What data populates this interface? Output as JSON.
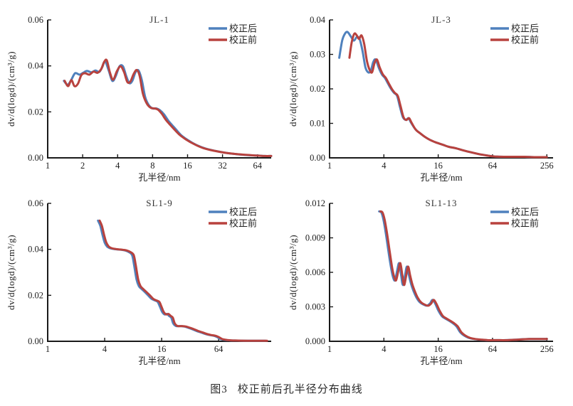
{
  "figure_caption": {
    "label": "图3",
    "text": "校正前后孔半径分布曲线"
  },
  "colors": {
    "after": "#4f81bd",
    "before": "#b8423e",
    "axis": "#1a1a1a",
    "text": "#1c1c1c"
  },
  "legend_labels": {
    "after": "校正后",
    "before": "校正前"
  },
  "chart_data": [
    {
      "type": "line",
      "title": "JL-1",
      "xlabel": "孔半径/nm",
      "ylabel": "dv/d(logd)/(cm³/g)",
      "xscale": "log",
      "xlim": [
        1,
        84
      ],
      "ylim": [
        0,
        0.06
      ],
      "xticks": [
        1,
        2,
        4,
        8,
        16,
        32,
        64
      ],
      "xtick_labels": [
        "1",
        "2",
        "4",
        "8",
        "16",
        "32",
        "64"
      ],
      "yticks": [
        0,
        0.02,
        0.04,
        0.06
      ],
      "ytick_labels": [
        "0.00",
        "0.02",
        "0.04",
        "0.06"
      ],
      "legend_position": "top-right",
      "grid": false,
      "series": [
        {
          "name": "校正后",
          "color_key": "after",
          "x": [
            1.38,
            1.48,
            1.58,
            1.72,
            1.88,
            2.02,
            2.18,
            2.38,
            2.58,
            2.78,
            2.95,
            3.12,
            3.35,
            3.6,
            3.85,
            4.15,
            4.45,
            4.75,
            5.05,
            5.35,
            5.7,
            6.05,
            6.45,
            6.9,
            7.4,
            8.0,
            8.6,
            9.2,
            10,
            11,
            12.5,
            14,
            16,
            19,
            23,
            28,
            34,
            42,
            52,
            64,
            74,
            84
          ],
          "y": [
            0.0335,
            0.0318,
            0.0335,
            0.0368,
            0.0362,
            0.037,
            0.0378,
            0.0372,
            0.038,
            0.0374,
            0.0395,
            0.042,
            0.038,
            0.0335,
            0.0355,
            0.0398,
            0.0398,
            0.0355,
            0.0325,
            0.0335,
            0.0372,
            0.038,
            0.034,
            0.0265,
            0.023,
            0.0215,
            0.0215,
            0.0208,
            0.019,
            0.016,
            0.0128,
            0.01,
            0.0078,
            0.0056,
            0.004,
            0.003,
            0.0022,
            0.0016,
            0.0012,
            0.001,
            0.0008,
            0.0008
          ]
        },
        {
          "name": "校正前",
          "color_key": "before",
          "x": [
            1.4,
            1.5,
            1.6,
            1.7,
            1.82,
            1.95,
            2.1,
            2.28,
            2.48,
            2.68,
            2.88,
            3.05,
            3.22,
            3.42,
            3.65,
            3.95,
            4.25,
            4.55,
            4.85,
            5.15,
            5.5,
            5.85,
            6.2,
            6.6,
            7.1,
            7.7,
            8.3,
            8.9,
            9.6,
            10.5,
            12,
            13.5,
            15.5,
            18.5,
            22,
            27,
            33,
            41,
            51,
            63,
            74,
            84
          ],
          "y": [
            0.0335,
            0.0312,
            0.0338,
            0.0312,
            0.0322,
            0.036,
            0.0368,
            0.0362,
            0.0375,
            0.037,
            0.0385,
            0.0415,
            0.0425,
            0.0375,
            0.034,
            0.0378,
            0.0398,
            0.0372,
            0.033,
            0.0332,
            0.0365,
            0.0382,
            0.0355,
            0.028,
            0.0238,
            0.0218,
            0.0215,
            0.021,
            0.0192,
            0.0163,
            0.013,
            0.0103,
            0.008,
            0.0058,
            0.0042,
            0.0031,
            0.0023,
            0.0017,
            0.0013,
            0.001,
            0.0008,
            0.0008
          ]
        }
      ]
    },
    {
      "type": "line",
      "title": "JL-3",
      "xlabel": "孔半径/nm",
      "ylabel": "dv/d(logd)/(cm³/g)",
      "xscale": "log",
      "xlim": [
        1,
        300
      ],
      "ylim": [
        0,
        0.04
      ],
      "xticks": [
        1,
        4,
        16,
        64,
        256
      ],
      "xtick_labels": [
        "1",
        "4",
        "16",
        "64",
        "256"
      ],
      "yticks": [
        0,
        0.01,
        0.02,
        0.03,
        0.04
      ],
      "ytick_labels": [
        "0.00",
        "0.01",
        "0.02",
        "0.03",
        "0.04"
      ],
      "legend_position": "top-right",
      "grid": false,
      "series": [
        {
          "name": "校正后",
          "color_key": "after",
          "x": [
            1.28,
            1.38,
            1.48,
            1.58,
            1.72,
            1.86,
            2.0,
            2.15,
            2.32,
            2.5,
            2.68,
            2.86,
            3.05,
            3.25,
            3.5,
            3.8,
            4.1,
            4.45,
            4.8,
            5.2,
            5.6,
            6.0,
            6.5,
            7.0,
            7.5,
            8.0,
            9.0,
            10,
            11.5,
            13,
            15,
            18,
            21,
            25,
            30,
            37,
            45,
            55,
            68,
            85,
            110,
            145,
            190,
            256
          ],
          "y": [
            0.029,
            0.034,
            0.036,
            0.0365,
            0.0352,
            0.034,
            0.035,
            0.0345,
            0.031,
            0.0262,
            0.0248,
            0.0252,
            0.0278,
            0.0285,
            0.0262,
            0.0242,
            0.0232,
            0.0215,
            0.02,
            0.0188,
            0.018,
            0.015,
            0.0118,
            0.011,
            0.0115,
            0.0102,
            0.0082,
            0.0072,
            0.006,
            0.0052,
            0.0045,
            0.0038,
            0.0032,
            0.0028,
            0.0022,
            0.0016,
            0.0011,
            0.0007,
            0.0004,
            0.0003,
            0.0003,
            0.0003,
            0.0002,
            0.0002
          ]
        },
        {
          "name": "校正前",
          "color_key": "before",
          "x": [
            1.66,
            1.76,
            1.88,
            2.0,
            2.12,
            2.26,
            2.42,
            2.6,
            2.78,
            2.96,
            3.15,
            3.35,
            3.6,
            3.9,
            4.2,
            4.55,
            4.9,
            5.3,
            5.7,
            6.1,
            6.6,
            7.1,
            7.6,
            8.1,
            9.0,
            10,
            11.5,
            13,
            15,
            18,
            21,
            25,
            30,
            37,
            45,
            55,
            68,
            85,
            110,
            145,
            190,
            256
          ],
          "y": [
            0.029,
            0.0335,
            0.036,
            0.0355,
            0.0345,
            0.0355,
            0.033,
            0.028,
            0.0255,
            0.0248,
            0.0275,
            0.0285,
            0.0262,
            0.0242,
            0.0232,
            0.0215,
            0.02,
            0.0188,
            0.018,
            0.0152,
            0.0118,
            0.011,
            0.0115,
            0.0102,
            0.0082,
            0.0072,
            0.006,
            0.0052,
            0.0045,
            0.0038,
            0.0032,
            0.0028,
            0.0022,
            0.0016,
            0.0011,
            0.0007,
            0.0004,
            0.0003,
            0.0003,
            0.0003,
            0.0002,
            0.0002
          ]
        }
      ]
    },
    {
      "type": "line",
      "title": "SL1-9",
      "xlabel": "孔半径/nm",
      "ylabel": "dv/d(logd)/(cm³/g)",
      "xscale": "log",
      "xlim": [
        1,
        230
      ],
      "ylim": [
        0,
        0.06
      ],
      "xticks": [
        1,
        4,
        16,
        64
      ],
      "xtick_labels": [
        "1",
        "4",
        "16",
        "64"
      ],
      "yticks": [
        0,
        0.02,
        0.04,
        0.06
      ],
      "ytick_labels": [
        "0.00",
        "0.02",
        "0.04",
        "0.06"
      ],
      "legend_position": "top-right",
      "grid": false,
      "series": [
        {
          "name": "校正后",
          "color_key": "after",
          "x": [
            3.4,
            3.6,
            3.8,
            4.0,
            4.25,
            4.55,
            4.9,
            5.4,
            6.0,
            6.6,
            7.2,
            7.8,
            8.2,
            8.7,
            9.2,
            9.8,
            10.6,
            11.5,
            12.5,
            13.5,
            14.5,
            15.3,
            16.2,
            17.2,
            18.2,
            19.2,
            20.2,
            21.2,
            22.5,
            24,
            26,
            28,
            31,
            34,
            38,
            42,
            47,
            52,
            57,
            62,
            67,
            75,
            85,
            100,
            125,
            160,
            200
          ],
          "y": [
            0.0525,
            0.0502,
            0.0462,
            0.043,
            0.0412,
            0.0405,
            0.0402,
            0.04,
            0.0398,
            0.0395,
            0.0388,
            0.0375,
            0.033,
            0.0268,
            0.024,
            0.0228,
            0.0215,
            0.02,
            0.0185,
            0.0178,
            0.0172,
            0.0152,
            0.0128,
            0.0117,
            0.0119,
            0.011,
            0.0103,
            0.0078,
            0.0067,
            0.0066,
            0.0066,
            0.0064,
            0.0058,
            0.0052,
            0.0044,
            0.0038,
            0.0031,
            0.0027,
            0.0024,
            0.0018,
            0.001,
            0.0006,
            0.0004,
            0.0003,
            0.0002,
            0.0002,
            0.0002
          ]
        },
        {
          "name": "校正前",
          "color_key": "before",
          "x": [
            3.54,
            3.74,
            3.95,
            4.16,
            4.42,
            4.73,
            5.1,
            5.62,
            6.24,
            6.86,
            7.49,
            8.11,
            8.53,
            9.05,
            9.57,
            10.2,
            11.0,
            12.0,
            13.0,
            14.0,
            15.1,
            15.9,
            16.8,
            17.9,
            18.9,
            20.0,
            21.0,
            22.0,
            23.4,
            25,
            27,
            29.1,
            32.2,
            35.4,
            39.5,
            43.7,
            48.9,
            54.1,
            59.3,
            64.5,
            69.7,
            78,
            88.4,
            104,
            130,
            166,
            208
          ],
          "y": [
            0.0525,
            0.0502,
            0.0462,
            0.043,
            0.0412,
            0.0405,
            0.0402,
            0.04,
            0.0398,
            0.0395,
            0.0388,
            0.0375,
            0.033,
            0.0268,
            0.024,
            0.0228,
            0.0215,
            0.02,
            0.0185,
            0.0178,
            0.0172,
            0.0152,
            0.0128,
            0.0117,
            0.0119,
            0.011,
            0.0103,
            0.0078,
            0.0067,
            0.0066,
            0.0066,
            0.0064,
            0.0058,
            0.0052,
            0.0044,
            0.0038,
            0.0031,
            0.0027,
            0.0024,
            0.0018,
            0.001,
            0.0006,
            0.0004,
            0.0003,
            0.0002,
            0.0002,
            0.0002
          ]
        }
      ]
    },
    {
      "type": "line",
      "title": "SL1-13",
      "xlabel": "孔半径/nm",
      "ylabel": "dv/d(logd)/(cm³/g)",
      "xscale": "log",
      "xlim": [
        1,
        300
      ],
      "ylim": [
        0,
        0.012
      ],
      "xticks": [
        1,
        4,
        16,
        64,
        256
      ],
      "xtick_labels": [
        "1",
        "4",
        "16",
        "64",
        "256"
      ],
      "yticks": [
        0,
        0.003,
        0.006,
        0.009,
        0.012
      ],
      "ytick_labels": [
        "0.000",
        "0.003",
        "0.006",
        "0.009",
        "0.012"
      ],
      "legend_position": "top-right",
      "grid": false,
      "series": [
        {
          "name": "校正后",
          "color_key": "after",
          "x": [
            3.55,
            3.75,
            3.95,
            4.2,
            4.5,
            4.8,
            5.05,
            5.3,
            5.6,
            5.9,
            6.2,
            6.5,
            6.85,
            7.2,
            7.6,
            8.0,
            8.5,
            9.2,
            10,
            11,
            12,
            13,
            13.8,
            14.8,
            16,
            17.5,
            19,
            21,
            23,
            25.5,
            28,
            31,
            35,
            40,
            46,
            55,
            70,
            90,
            120,
            160,
            200,
            240,
            256
          ],
          "y": [
            0.0113,
            0.0112,
            0.0106,
            0.0094,
            0.0078,
            0.0064,
            0.0056,
            0.0053,
            0.0061,
            0.0068,
            0.0058,
            0.0049,
            0.0057,
            0.0065,
            0.0057,
            0.005,
            0.0044,
            0.0038,
            0.0034,
            0.0032,
            0.0031,
            0.0033,
            0.0036,
            0.0033,
            0.0027,
            0.0022,
            0.002,
            0.0018,
            0.0016,
            0.0013,
            0.0008,
            0.0005,
            0.0003,
            0.0002,
            0.00015,
            0.0001,
            0.0001,
            0.0001,
            0.00015,
            0.0002,
            0.0002,
            0.0002,
            0.0002
          ]
        },
        {
          "name": "校正前",
          "color_key": "before",
          "x": [
            3.66,
            3.86,
            4.07,
            4.33,
            4.64,
            4.94,
            5.2,
            5.46,
            5.77,
            6.08,
            6.39,
            6.7,
            7.06,
            7.42,
            7.83,
            8.24,
            8.76,
            9.48,
            10.3,
            11.3,
            12.4,
            13.4,
            14.2,
            15.2,
            16.5,
            18,
            19.6,
            21.6,
            23.7,
            26.3,
            28.8,
            31.9,
            36,
            41.2,
            47.4,
            56.7,
            72.1,
            92.7,
            123.6,
            164.8,
            206,
            247.2,
            256
          ],
          "y": [
            0.0113,
            0.0112,
            0.0106,
            0.0094,
            0.0078,
            0.0064,
            0.0056,
            0.0053,
            0.0061,
            0.0068,
            0.0058,
            0.0049,
            0.0057,
            0.0065,
            0.0057,
            0.005,
            0.0044,
            0.0038,
            0.0034,
            0.0032,
            0.0031,
            0.0033,
            0.0036,
            0.0033,
            0.0027,
            0.0022,
            0.002,
            0.0018,
            0.0016,
            0.0013,
            0.0008,
            0.0005,
            0.0003,
            0.0002,
            0.00015,
            0.0001,
            0.0001,
            0.0001,
            0.00015,
            0.0002,
            0.0002,
            0.0002,
            0.0002
          ]
        }
      ]
    }
  ]
}
